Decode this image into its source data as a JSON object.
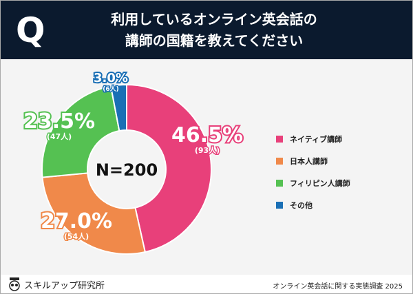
{
  "header": {
    "q": "Q",
    "title_line1": "利用しているオンライン英会話の",
    "title_line2": "講師の国籍を教えてください"
  },
  "footer": {
    "brand": "スキルアップ研究所",
    "source": "オンライン英会話に関する実態調査 2025"
  },
  "chart_data": {
    "type": "pie",
    "donut": true,
    "center_label": "N=200",
    "categories": [
      "ネイティブ講師",
      "日本人講師",
      "フィリピン人講師",
      "その他"
    ],
    "values": [
      46.5,
      27.0,
      23.5,
      3.0
    ],
    "counts": [
      93,
      54,
      47,
      6
    ],
    "value_labels": [
      "46.5%",
      "27.0%",
      "23.5%",
      "3.0%"
    ],
    "count_labels": [
      "(93人)",
      "(54人)",
      "(47人)",
      "(6人)"
    ],
    "colors": [
      "#e8407a",
      "#f0894a",
      "#55c152",
      "#1a6fb5"
    ],
    "legend": "right"
  }
}
